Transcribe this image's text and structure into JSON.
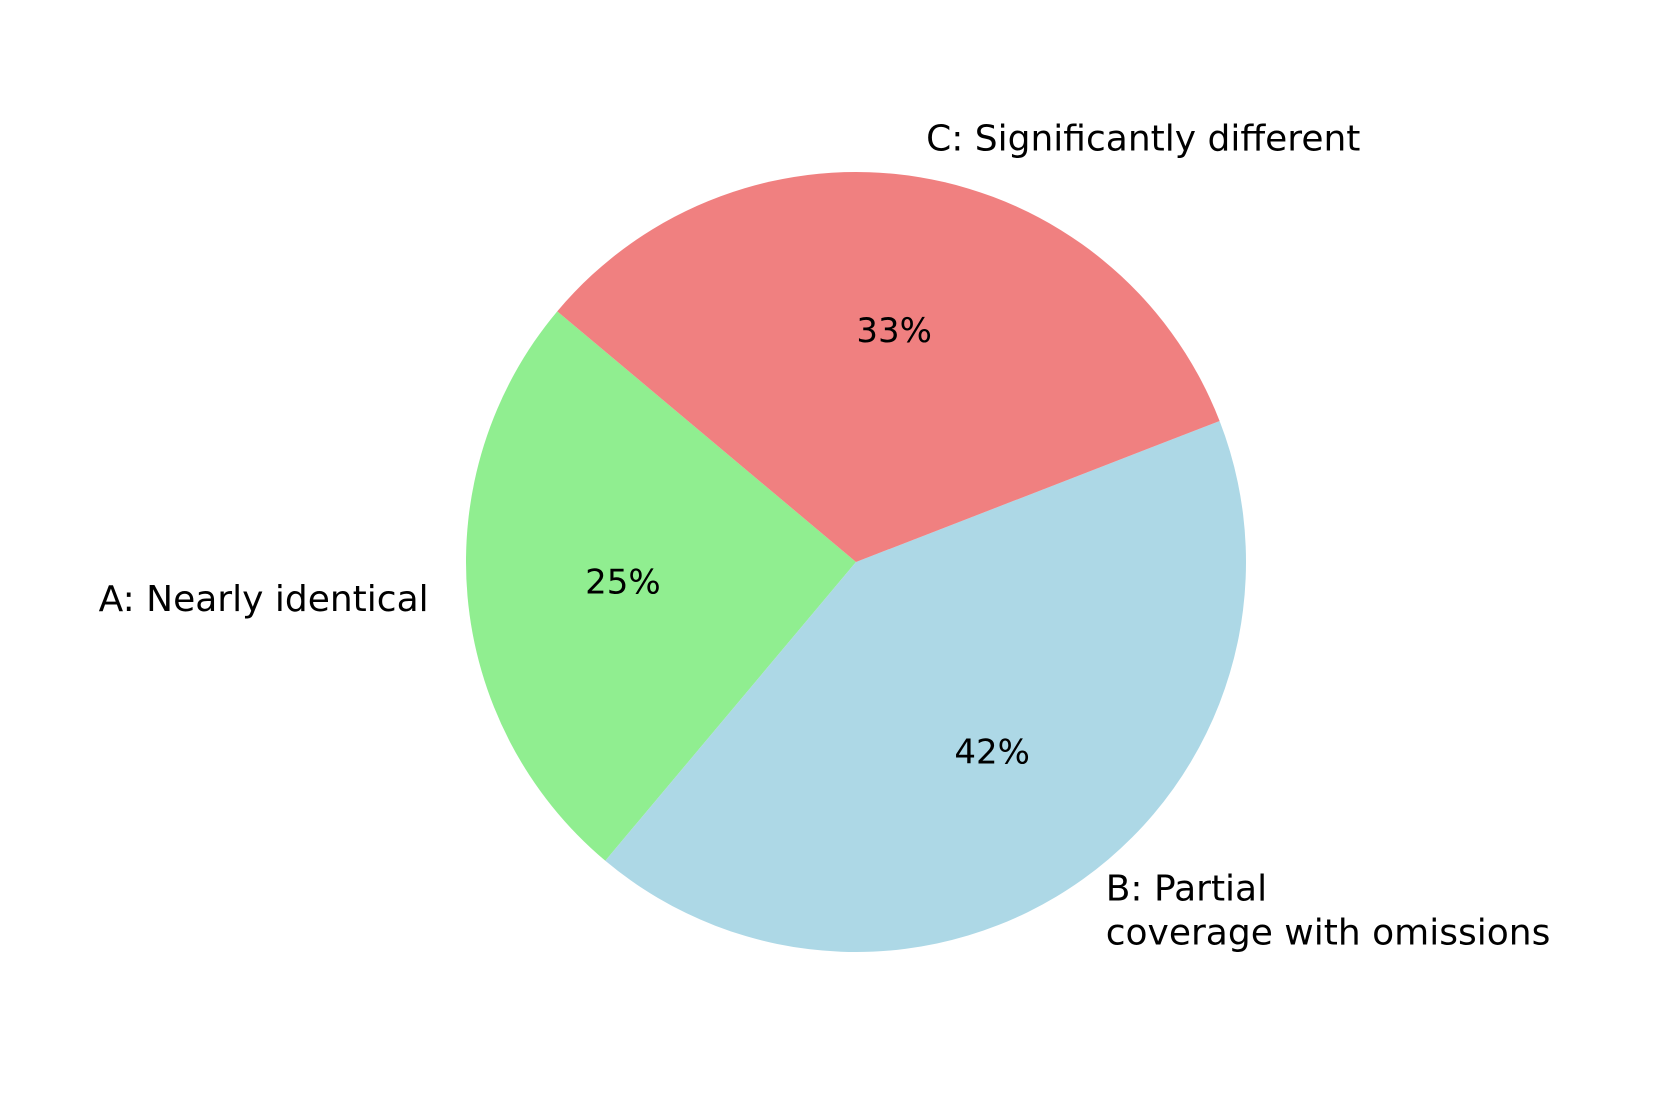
{
  "chart_data": {
    "type": "pie",
    "slices": [
      {
        "label": "A: Nearly identical",
        "label_lines": [
          "A: Nearly identical"
        ],
        "value": 25,
        "pct_label": "25%",
        "color": "#90ee90"
      },
      {
        "label": "B: Partial coverage with omissions",
        "label_lines": [
          "B: Partial",
          "coverage with omissions"
        ],
        "value": 42,
        "pct_label": "42%",
        "color": "#add8e6"
      },
      {
        "label": "C: Significantly different",
        "label_lines": [
          "C: Significantly different"
        ],
        "value": 33,
        "pct_label": "33%",
        "color": "#f08080"
      }
    ],
    "start_angle_deg": 140,
    "direction": "counterclockwise",
    "legend": "none"
  }
}
